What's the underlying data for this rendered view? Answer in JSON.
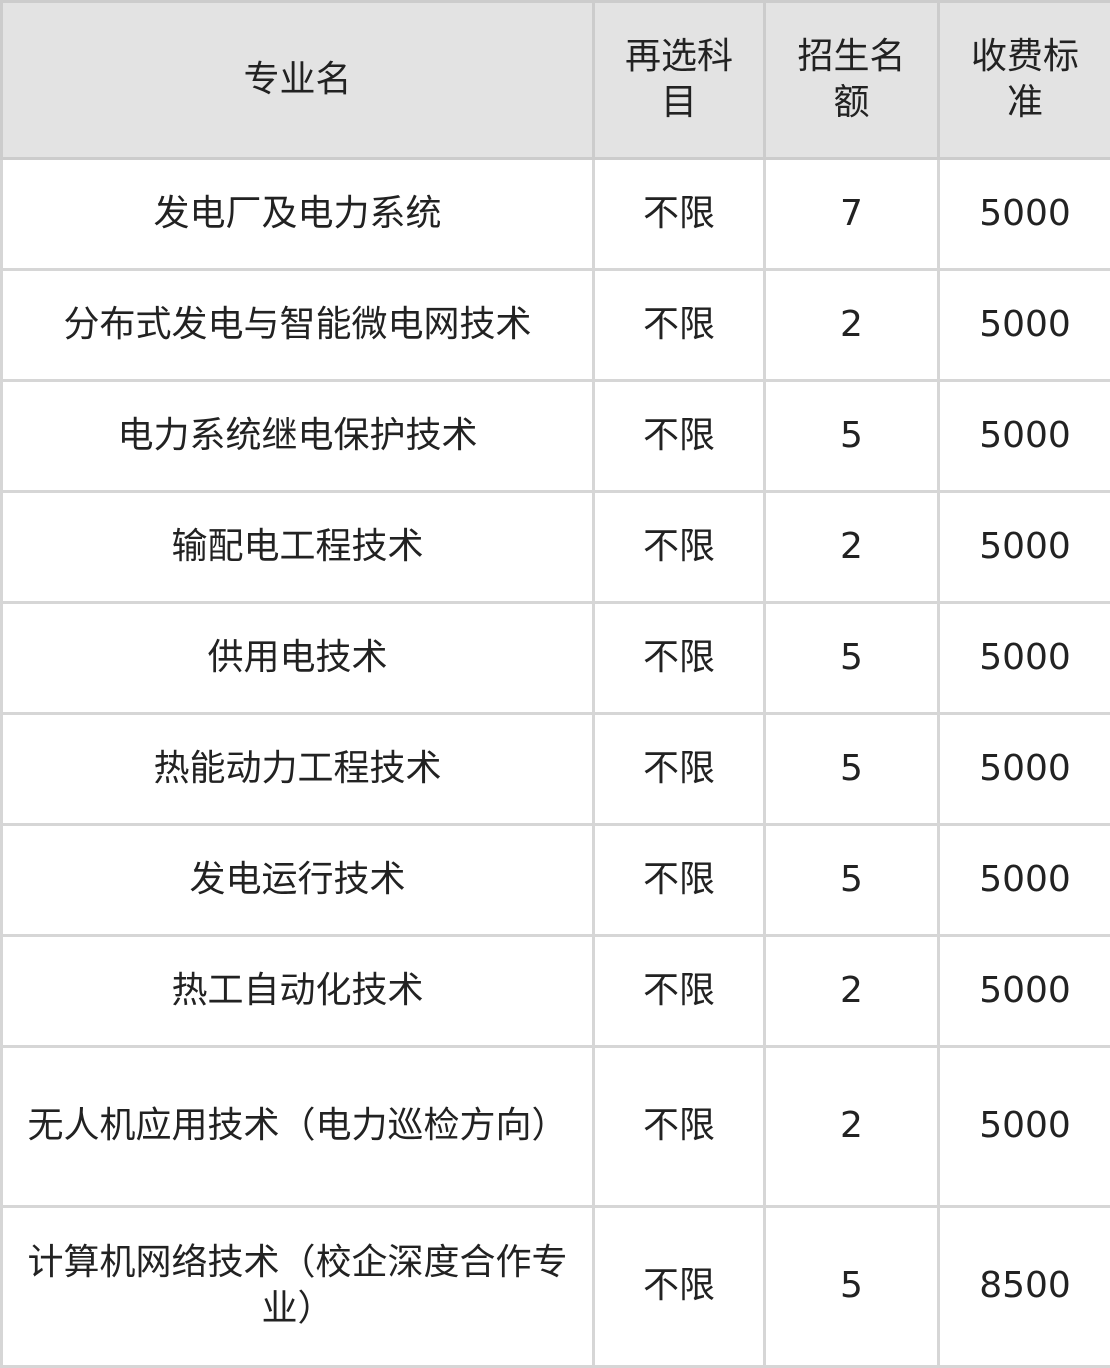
{
  "headers": [
    "专业名",
    "再选科目",
    "招生名额",
    "收费标准"
  ],
  "rows": [
    [
      "发电厂及电力系统",
      "不限",
      "7",
      "5000"
    ],
    [
      "分布式发电与智能微电网技术",
      "不限",
      "2",
      "5000"
    ],
    [
      "电力系统继电保护技术",
      "不限",
      "5",
      "5000"
    ],
    [
      "输配电工程技术",
      "不限",
      "2",
      "5000"
    ],
    [
      "供用电技术",
      "不限",
      "5",
      "5000"
    ],
    [
      "热能动力工程技术",
      "不限",
      "5",
      "5000"
    ],
    [
      "发电运行技术",
      "不限",
      "5",
      "5000"
    ],
    [
      "热工自动化技术",
      "不限",
      "2",
      "5000"
    ],
    [
      "无人机应用技术（电力巡检方向）",
      "不限",
      "2",
      "5000"
    ],
    [
      "计算机网络技术（校企深度合作专业）",
      "不限",
      "5",
      "8500"
    ]
  ]
}
